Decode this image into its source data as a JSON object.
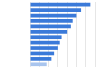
{
  "chart_data": {
    "type": "bar",
    "orientation": "horizontal",
    "categories": [
      null,
      null,
      null,
      null,
      null,
      null,
      null,
      null,
      null,
      null,
      null,
      null
    ],
    "values": [
      65,
      55,
      50,
      46,
      44,
      40,
      34,
      32,
      30,
      26,
      23,
      18
    ],
    "colors": [
      "#3b7ad9",
      "#3b7ad9",
      "#3b7ad9",
      "#3b7ad9",
      "#3b7ad9",
      "#3b7ad9",
      "#3b7ad9",
      "#3b7ad9",
      "#3b7ad9",
      "#3b7ad9",
      "#3b7ad9",
      "#a9c5ee"
    ],
    "ylim": [
      0,
      70
    ],
    "yticks": [
      0,
      10,
      20,
      30,
      40,
      50,
      60,
      70
    ],
    "grid": true,
    "tick_labels": false
  }
}
